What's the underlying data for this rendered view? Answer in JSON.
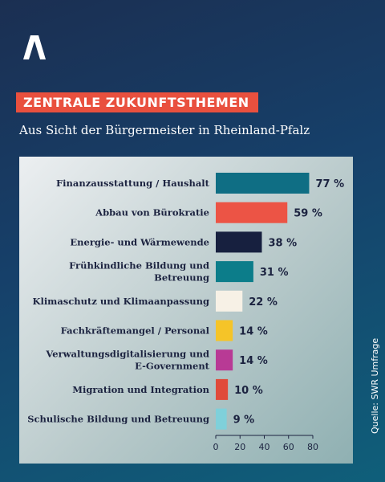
{
  "header": {
    "badge": "ZENTRALE ZUKUNFTSTHEMEN",
    "subtitle": "Aus Sicht der Bürgermeister in Rheinland-Pfalz"
  },
  "source": "Quelle: SWR Umfrage",
  "logo": {
    "icon": "swr-logo-icon"
  },
  "chart_data": {
    "type": "bar",
    "orientation": "horizontal",
    "title": "",
    "xlabel": "",
    "ylabel": "",
    "xlim": [
      0,
      80
    ],
    "x_ticks": [
      "0",
      "20",
      "40",
      "60",
      "80"
    ],
    "value_suffix": " %",
    "grid": false,
    "bars": [
      {
        "lines": [
          "Finanzausstattung / Haushalt"
        ],
        "value": 77,
        "color": "#0f6e84"
      },
      {
        "lines": [
          "Abbau von Bürokratie"
        ],
        "value": 59,
        "color": "#ec5445"
      },
      {
        "lines": [
          "Energie- und Wärmewende"
        ],
        "value": 38,
        "color": "#17203f"
      },
      {
        "lines": [
          "Frühkindliche Bildung und",
          "Betreuung"
        ],
        "value": 31,
        "color": "#0c7d8a"
      },
      {
        "lines": [
          "Klimaschutz und Klimaanpassung"
        ],
        "value": 22,
        "color": "#f7f1e6"
      },
      {
        "lines": [
          "Fachkräftemangel / Personal"
        ],
        "value": 14,
        "color": "#f5c428"
      },
      {
        "lines": [
          "Verwaltungsdigitalisierung und",
          "E-Government"
        ],
        "value": 14,
        "color": "#b83a95"
      },
      {
        "lines": [
          "Migration und Integration"
        ],
        "value": 10,
        "color": "#e04a3a"
      },
      {
        "lines": [
          "Schulische Bildung und Betreuung"
        ],
        "value": 9,
        "color": "#7fd0da"
      }
    ]
  }
}
